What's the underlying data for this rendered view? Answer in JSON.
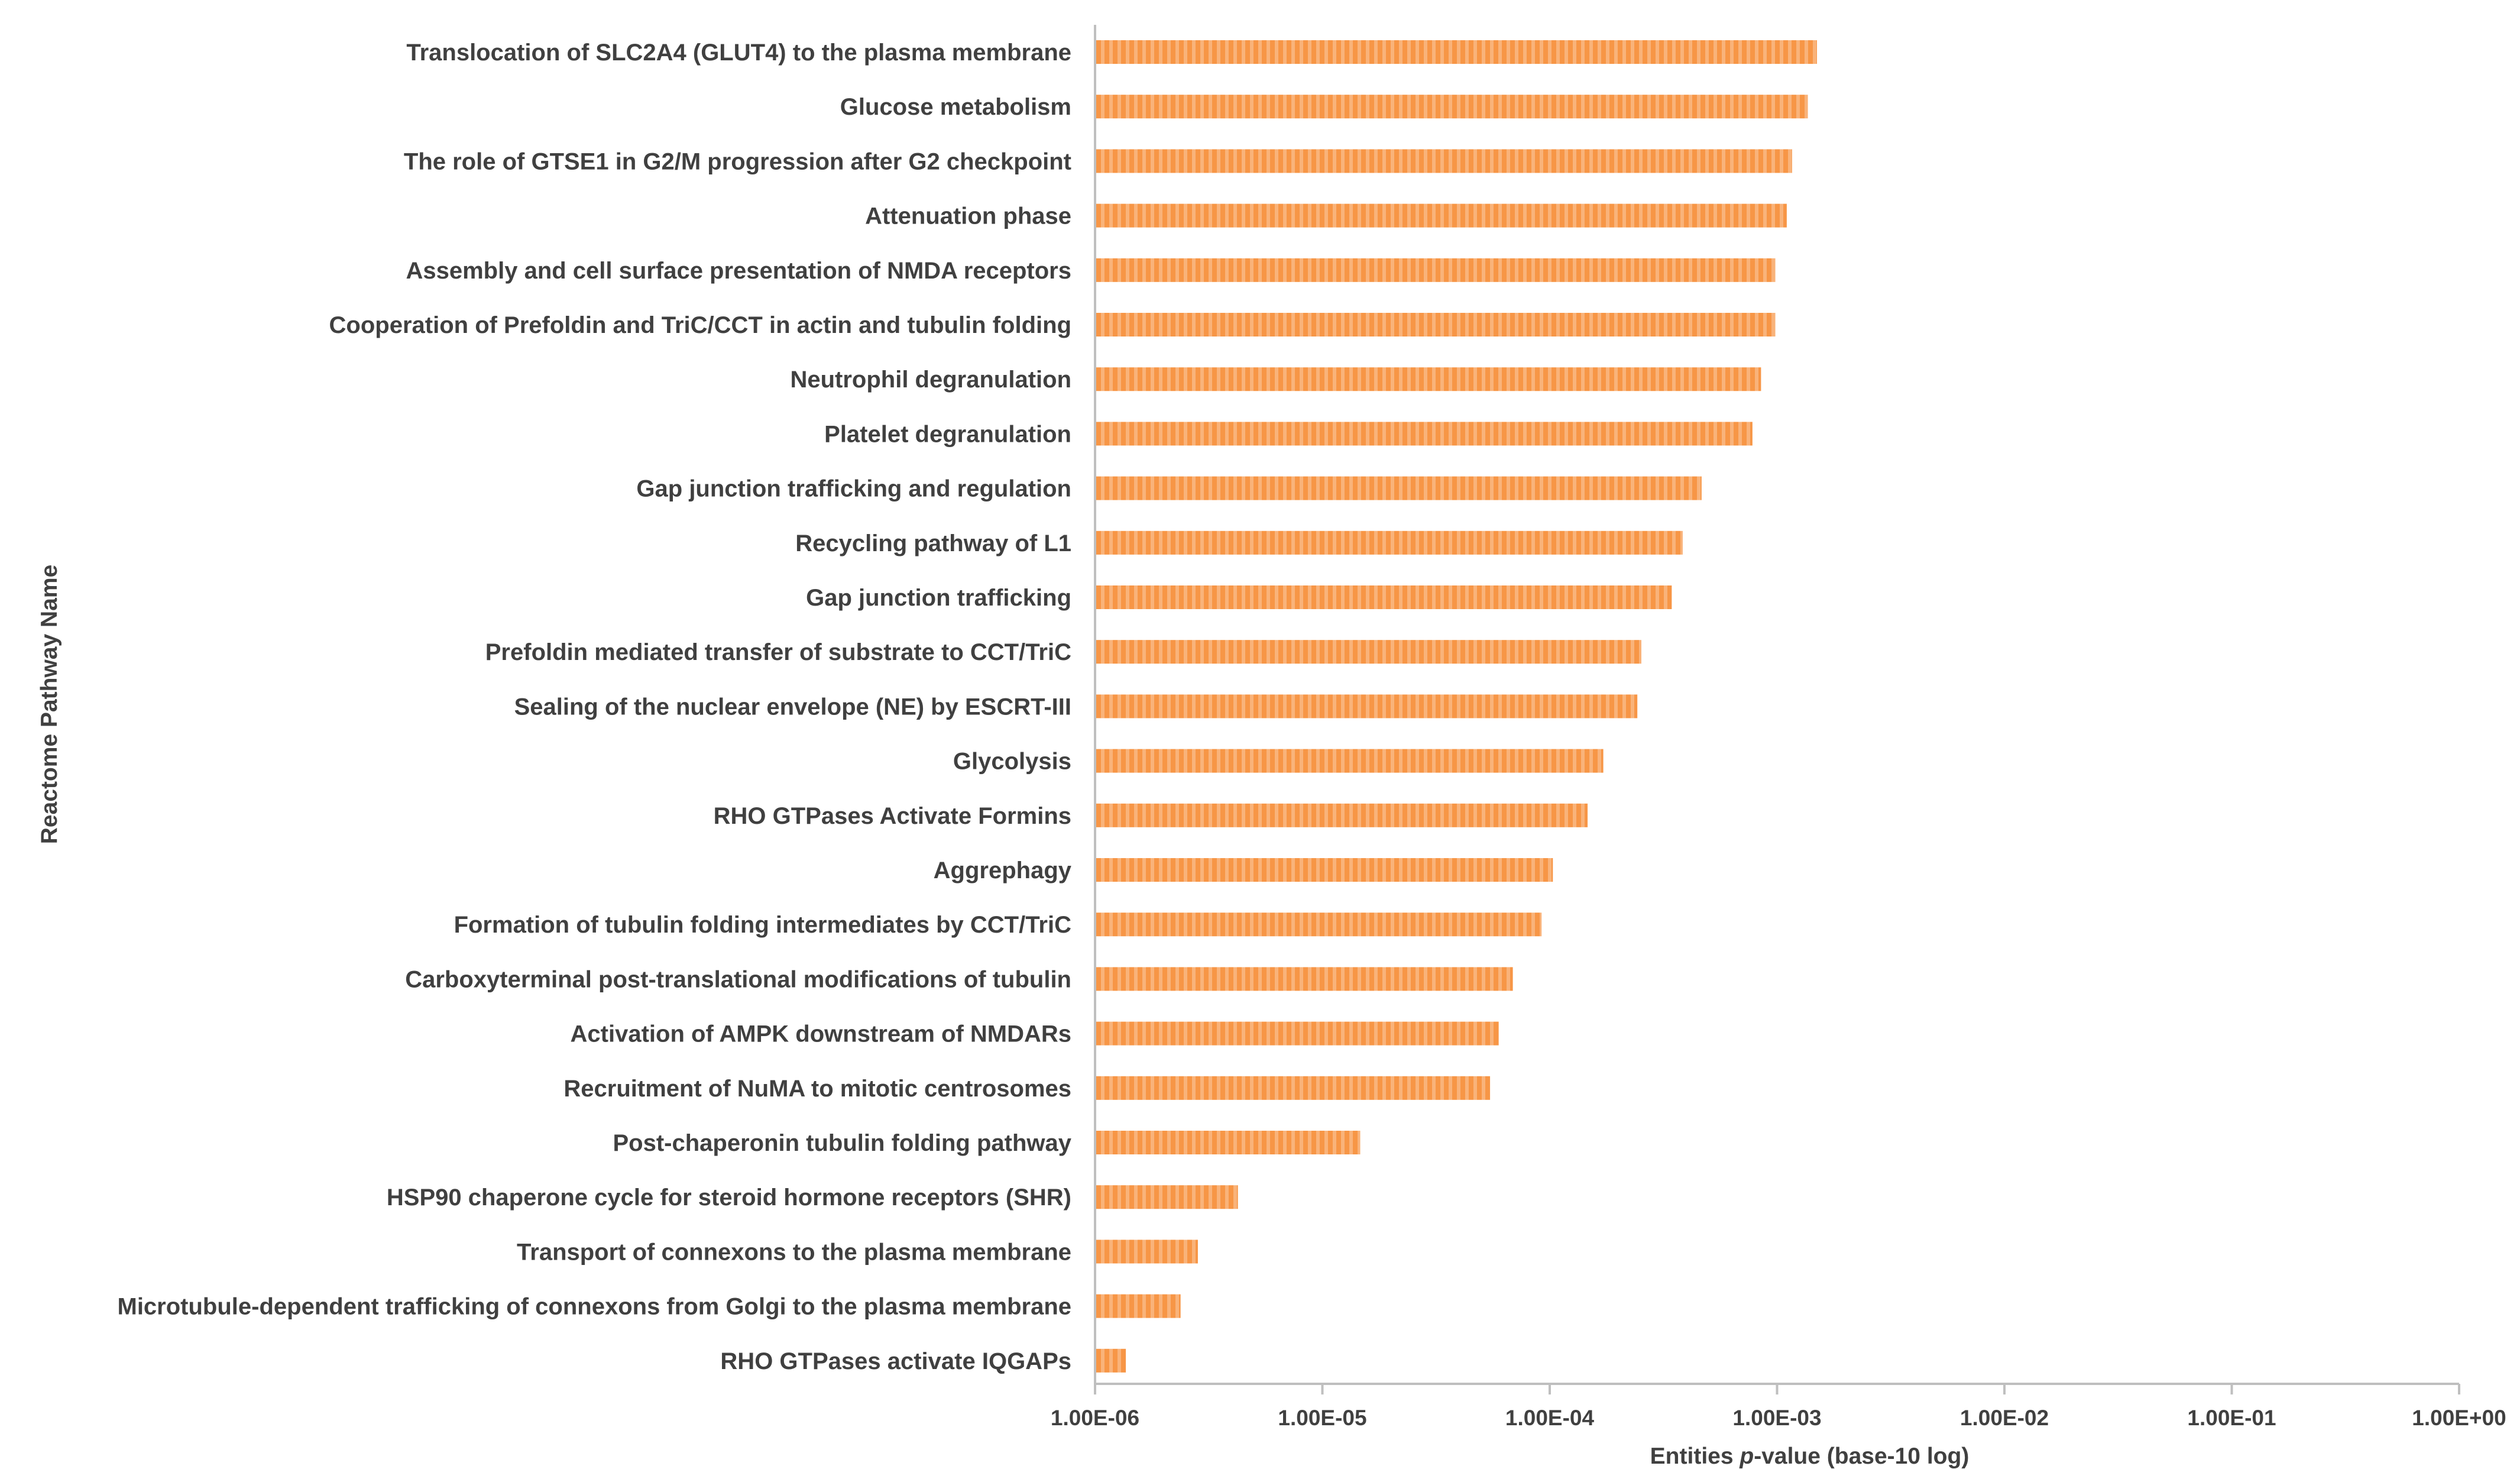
{
  "chart_data": {
    "type": "bar",
    "orientation": "horizontal",
    "title": "",
    "ylabel": "Reactome Pathway Name",
    "xlabel": {
      "prefix": "Entities ",
      "italic": "p",
      "suffix": "-value (base-10 log)"
    },
    "xscale": "log10",
    "xlim": [
      1e-06,
      1
    ],
    "xticks": [
      "1.00E-06",
      "1.00E-05",
      "1.00E-04",
      "1.00E-03",
      "1.00E-02",
      "1.00E-01",
      "1.00E+00"
    ],
    "bar_color": "#F79646",
    "categories": [
      "Translocation of SLC2A4 (GLUT4) to the plasma membrane",
      "Glucose metabolism",
      "The role of GTSE1 in G2/M progression after G2 checkpoint",
      "Attenuation phase",
      "Assembly and cell surface presentation of NMDA receptors",
      "Cooperation of Prefoldin and TriC/CCT  in actin and tubulin folding",
      "Neutrophil degranulation",
      "Platelet degranulation ",
      "Gap junction trafficking and regulation",
      "Recycling pathway of L1",
      "Gap junction trafficking",
      "Prefoldin mediated transfer of substrate  to CCT/TriC",
      "Sealing of the nuclear envelope (NE) by ESCRT-III",
      "Glycolysis",
      "RHO GTPases Activate Formins",
      "Aggrephagy",
      "Formation of tubulin folding intermediates by CCT/TriC",
      "Carboxyterminal post-translational modifications of tubulin",
      "Activation of AMPK downstream of NMDARs",
      "Recruitment of NuMA to mitotic centrosomes",
      "Post-chaperonin tubulin folding pathway",
      "HSP90 chaperone cycle for steroid hormone receptors (SHR)",
      "Transport of connexons to the plasma membrane",
      "Microtubule-dependent trafficking of connexons from Golgi to the plasma membrane",
      "RHO GTPases activate IQGAPs"
    ],
    "values": [
      0.00148,
      0.00135,
      0.00115,
      0.00109,
      0.00097,
      0.00097,
      0.00084,
      0.00077,
      0.00046,
      0.00038,
      0.00034,
      0.00025,
      0.00024,
      0.00017,
      0.000145,
      0.000102,
      9.1e-05,
      6.8e-05,
      5.9e-05,
      5.4e-05,
      1.45e-05,
      4.2e-06,
      2.8e-06,
      2.35e-06,
      1.35e-06
    ]
  }
}
